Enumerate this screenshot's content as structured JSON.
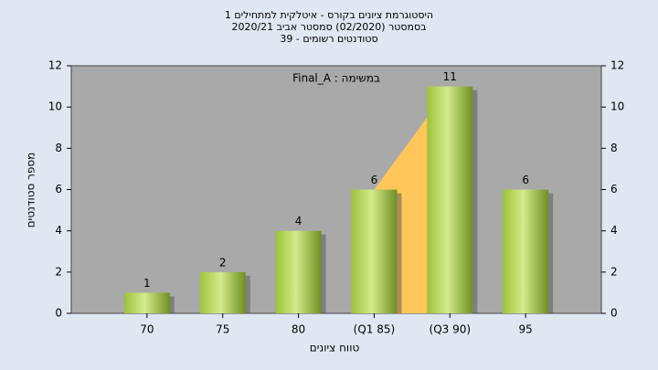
{
  "chart_data": {
    "type": "bar",
    "title": [
      "היסטוגרמת ציונים בקורס - איטלקית למתחילים 1",
      "בסמסטר  (02/2020)  סמסטר אביב 2020/21",
      "סטודנטים רשומים - 39"
    ],
    "annotation": "במשימה : Final_A",
    "y_label": "מספר סטודנטים",
    "x_label": "טווח ציונים",
    "categories": [
      "70",
      "75",
      "80",
      "(Q1 85)",
      "(Q3 90)",
      "95"
    ],
    "values": [
      1,
      2,
      4,
      6,
      11,
      6
    ],
    "color": "#9cc23a",
    "ylim": [
      0,
      12
    ],
    "yticks": [
      0,
      2,
      4,
      6,
      8,
      10,
      12
    ],
    "y2lim": [
      0,
      12
    ],
    "y2ticks": [
      0,
      2,
      4,
      6,
      8,
      10,
      12
    ],
    "grid": true
  }
}
